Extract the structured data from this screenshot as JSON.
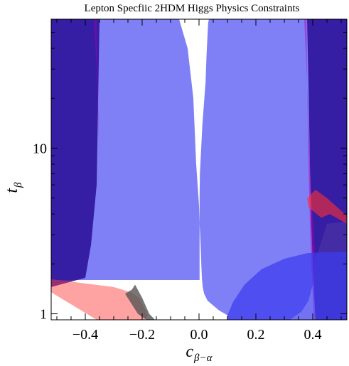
{
  "chart_data": {
    "type": "area",
    "title": "Lepton Specfiic 2HDM Higgs Physics Constraints",
    "xlabel": "c",
    "xlabel_sub": "β−α",
    "ylabel": "t",
    "ylabel_sub": "β",
    "xlim": [
      -0.52,
      0.52
    ],
    "ylim": [
      0.92,
      60
    ],
    "y_scale": "log",
    "grid": false,
    "legend": "none",
    "x_ticks": [
      {
        "value": -0.4,
        "label": "−0.4"
      },
      {
        "value": -0.2,
        "label": "−0.2"
      },
      {
        "value": 0.0,
        "label": "0.0"
      },
      {
        "value": 0.2,
        "label": "0.2"
      },
      {
        "value": 0.4,
        "label": "0.4"
      }
    ],
    "x_minor_step": 0.05,
    "y_ticks": [
      {
        "value": 1,
        "label": "1"
      },
      {
        "value": 10,
        "label": "10"
      }
    ],
    "y_minor_ticks": [
      2,
      3,
      4,
      5,
      6,
      7,
      8,
      9,
      20,
      30,
      40,
      50
    ],
    "colors": {
      "light_blue": "#8080f6",
      "dark_blue": "#3a22a0",
      "blue_blob": "#3b3bee",
      "red": "#ff6b6b",
      "gray": "#707070"
    },
    "regions": [
      {
        "color": "#8080f6",
        "opacity": 1,
        "x": [
          -0.52,
          -0.07,
          -0.04,
          -0.02,
          -0.01,
          0.0,
          0.002,
          0.004,
          0.006,
          0.008,
          0.01,
          0.013,
          0.018,
          0.03,
          0.07,
          0.1,
          0.1,
          0.32,
          0.36,
          0.385,
          0.4,
          0.405,
          0.45,
          0.52,
          0.52,
          0.4,
          0.3,
          0.2,
          0.12,
          0.08,
          0.05,
          0.035,
          0.032,
          0.026,
          0.023,
          0.012,
          0.003,
          0.002,
          0.002,
          -0.52
        ],
        "y": [
          60,
          60,
          40,
          20,
          8,
          4.5,
          3.5,
          3.0,
          2.5,
          2.0,
          1.65,
          1.45,
          1.32,
          1.2,
          1.05,
          0.98,
          0.92,
          0.92,
          1.03,
          1.2,
          1.5,
          2.0,
          3.5,
          3.6,
          60,
          60,
          60,
          60,
          60,
          60,
          60,
          60,
          57,
          35,
          25,
          14,
          7,
          5,
          1.6,
          1.6
        ]
      },
      {
        "color": "#2a0f98",
        "opacity": 0.88,
        "x": [
          -0.52,
          -0.35,
          -0.36,
          -0.38,
          -0.4,
          -0.52
        ],
        "y": [
          60,
          60,
          6,
          2.6,
          1.65,
          1.45
        ]
      },
      {
        "color": "#2a0f98",
        "opacity": 0.88,
        "x": [
          0.38,
          0.52,
          0.52,
          0.41,
          0.405,
          0.4,
          0.395,
          0.39,
          0.385
        ],
        "y": [
          60,
          60,
          0.92,
          0.92,
          1.3,
          2.0,
          3.5,
          8,
          25
        ]
      },
      {
        "color": "#b000b0",
        "opacity": 0.45,
        "x": [
          0.37,
          0.38,
          0.385,
          0.39,
          0.395,
          0.4,
          0.405,
          0.41,
          0.41,
          0.4,
          0.39,
          0.38,
          0.378
        ],
        "y": [
          60,
          25,
          8,
          3.5,
          2.0,
          1.3,
          0.92,
          0.92,
          2.0,
          4.0,
          8,
          25,
          60
        ]
      },
      {
        "color": "#b000b0",
        "opacity": 0.4,
        "x": [
          -0.37,
          -0.36,
          -0.355,
          -0.35,
          -0.36
        ],
        "y": [
          60,
          60,
          20,
          8,
          30
        ]
      },
      {
        "color": "#3b3bee",
        "opacity": 0.72,
        "x": [
          0.1,
          0.12,
          0.16,
          0.22,
          0.3,
          0.38,
          0.45,
          0.52,
          0.52,
          0.1
        ],
        "y": [
          0.98,
          1.18,
          1.5,
          1.86,
          2.15,
          2.32,
          2.36,
          2.37,
          0.92,
          0.92
        ]
      },
      {
        "color": "#ff3030",
        "opacity": 0.45,
        "x": [
          -0.52,
          -0.3,
          -0.24,
          -0.21,
          -0.18,
          -0.19,
          -0.36,
          -0.52
        ],
        "y": [
          1.62,
          1.45,
          1.35,
          1.25,
          0.98,
          0.92,
          0.92,
          1.35
        ]
      },
      {
        "color": "#555555",
        "opacity": 0.8,
        "x": [
          -0.236,
          -0.225,
          -0.2,
          -0.175,
          -0.155,
          -0.185,
          -0.215,
          -0.26
        ],
        "y": [
          1.4,
          1.5,
          1.25,
          1.0,
          0.92,
          0.92,
          1.0,
          1.32
        ]
      },
      {
        "color": "#ff3030",
        "opacity": 0.6,
        "x": [
          0.38,
          0.41,
          0.45,
          0.52,
          0.52,
          0.46,
          0.43,
          0.385
        ],
        "y": [
          5.0,
          5.6,
          5.0,
          3.9,
          3.5,
          4.0,
          3.8,
          4.4
        ]
      }
    ]
  }
}
